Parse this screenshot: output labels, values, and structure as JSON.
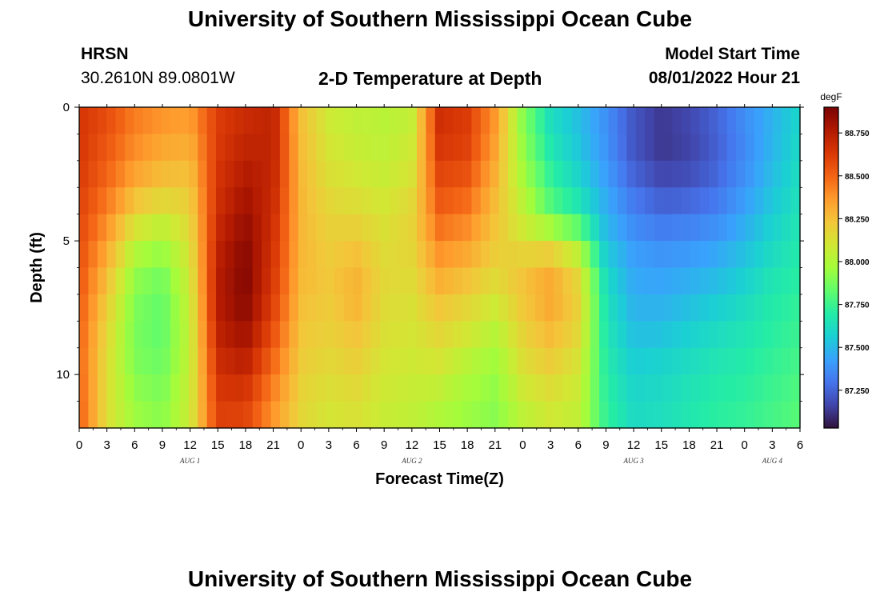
{
  "header": {
    "title": "University of Southern Mississippi Ocean Cube",
    "station": "HRSN",
    "coordinates": "30.2610N  89.0801W",
    "subtitle": "2-D Temperature at Depth",
    "model_start_label": "Model Start Time",
    "model_start_value": "08/01/2022 Hour 21"
  },
  "footer": {
    "title": "University of Southern Mississippi Ocean Cube"
  },
  "chart_data": {
    "type": "heatmap",
    "title": "2-D Temperature at Depth",
    "xlabel": "Forecast Time(Z)",
    "ylabel": "Depth (ft)",
    "x_tick_labels": [
      "0",
      "3",
      "6",
      "9",
      "12",
      "15",
      "18",
      "21",
      "0",
      "3",
      "6",
      "9",
      "12",
      "15",
      "18",
      "21",
      "0",
      "3",
      "6",
      "9",
      "12",
      "15",
      "18",
      "21",
      "0",
      "3",
      "6"
    ],
    "x_range_hours": [
      0,
      78
    ],
    "day_labels": [
      {
        "label": "AUG 1",
        "hour": 12
      },
      {
        "label": "AUG 2",
        "hour": 36
      },
      {
        "label": "AUG 3",
        "hour": 60
      },
      {
        "label": "AUG 4",
        "hour": 75
      }
    ],
    "y_tick_labels": [
      "0",
      "5",
      "10"
    ],
    "y_tick_values": [
      0,
      5,
      10
    ],
    "ylim": [
      0,
      12
    ],
    "colorbar": {
      "unit": "degF",
      "min": 87.03,
      "max": 88.9,
      "tick_labels": [
        "88.750",
        "88.500",
        "88.250",
        "88.000",
        "87.750",
        "87.500",
        "87.250"
      ],
      "tick_values": [
        88.75,
        88.5,
        88.25,
        88.0,
        87.75,
        87.5,
        87.25
      ]
    },
    "colors": {
      "scale": [
        "#30123b",
        "#4145ab",
        "#4675ed",
        "#39a2fc",
        "#1bcfd4",
        "#24eca6",
        "#61fc6c",
        "#a4fc3b",
        "#d1e834",
        "#f3c63a",
        "#fe9b2d",
        "#f36315",
        "#d93806",
        "#b11901",
        "#7a0403"
      ]
    },
    "depths_ft": [
      0,
      1,
      2,
      3,
      4,
      5,
      6,
      7,
      8,
      9,
      10,
      11,
      12
    ],
    "series_sampling_hours": [
      0,
      3,
      6,
      9,
      12,
      15,
      18,
      21,
      24,
      27,
      30,
      33,
      36,
      39,
      42,
      45,
      48,
      51,
      54,
      57,
      60,
      63,
      66,
      69,
      72,
      75,
      78
    ],
    "temperature_by_depth_degF": [
      [
        88.65,
        88.58,
        88.45,
        88.4,
        88.38,
        88.62,
        88.68,
        88.72,
        88.25,
        88.08,
        88.05,
        88.02,
        88.05,
        88.68,
        88.62,
        88.38,
        87.9,
        87.62,
        87.52,
        87.38,
        87.22,
        87.14,
        87.18,
        87.26,
        87.38,
        87.48,
        87.6
      ],
      [
        88.65,
        88.55,
        88.42,
        88.35,
        88.32,
        88.62,
        88.7,
        88.72,
        88.26,
        88.1,
        88.05,
        88.03,
        88.07,
        88.66,
        88.62,
        88.36,
        87.92,
        87.64,
        87.52,
        87.38,
        87.2,
        87.12,
        87.16,
        87.24,
        87.36,
        87.48,
        87.6
      ],
      [
        88.64,
        88.52,
        88.38,
        88.3,
        88.28,
        88.64,
        88.74,
        88.72,
        88.27,
        88.12,
        88.08,
        88.05,
        88.1,
        88.62,
        88.58,
        88.32,
        87.95,
        87.7,
        87.56,
        87.4,
        87.22,
        87.14,
        87.16,
        87.24,
        87.36,
        87.5,
        87.62
      ],
      [
        88.62,
        88.48,
        88.3,
        88.22,
        88.22,
        88.66,
        88.78,
        88.7,
        88.28,
        88.15,
        88.12,
        88.08,
        88.14,
        88.56,
        88.52,
        88.28,
        88.0,
        87.75,
        87.62,
        87.44,
        87.28,
        87.2,
        87.22,
        87.28,
        87.4,
        87.52,
        87.64
      ],
      [
        88.6,
        88.42,
        88.18,
        88.1,
        88.18,
        88.68,
        88.82,
        88.68,
        88.28,
        88.18,
        88.16,
        88.12,
        88.18,
        88.5,
        88.44,
        88.25,
        88.06,
        87.84,
        87.7,
        87.48,
        87.34,
        87.28,
        87.3,
        87.34,
        87.44,
        87.56,
        87.66
      ],
      [
        88.58,
        88.35,
        88.05,
        87.98,
        88.14,
        88.72,
        88.86,
        88.66,
        88.28,
        88.2,
        88.22,
        88.14,
        88.18,
        88.42,
        88.36,
        88.22,
        88.12,
        88.1,
        87.95,
        87.52,
        87.4,
        87.36,
        87.38,
        87.42,
        87.5,
        87.6,
        87.68
      ],
      [
        88.56,
        88.28,
        87.95,
        87.88,
        88.1,
        88.74,
        88.88,
        88.64,
        88.28,
        88.22,
        88.28,
        88.16,
        88.16,
        88.34,
        88.28,
        88.18,
        88.24,
        88.3,
        88.14,
        87.6,
        87.44,
        87.42,
        87.44,
        87.48,
        87.55,
        87.64,
        87.7
      ],
      [
        88.54,
        88.22,
        87.9,
        87.84,
        88.08,
        88.76,
        88.88,
        88.62,
        88.26,
        88.22,
        88.3,
        88.16,
        88.14,
        88.26,
        88.2,
        88.12,
        88.24,
        88.34,
        88.2,
        87.64,
        87.46,
        87.46,
        87.5,
        87.54,
        87.6,
        87.68,
        87.72
      ],
      [
        88.52,
        88.18,
        87.88,
        87.82,
        88.06,
        88.74,
        88.84,
        88.58,
        88.24,
        88.2,
        88.26,
        88.14,
        88.12,
        88.2,
        88.14,
        88.05,
        88.2,
        88.3,
        88.18,
        87.66,
        87.5,
        87.5,
        87.55,
        87.6,
        87.64,
        87.7,
        87.74
      ],
      [
        88.5,
        88.15,
        87.88,
        87.84,
        88.06,
        88.7,
        88.78,
        88.52,
        88.22,
        88.18,
        88.22,
        88.12,
        88.1,
        88.14,
        88.06,
        87.98,
        88.16,
        88.24,
        88.14,
        87.68,
        87.54,
        87.56,
        87.6,
        87.64,
        87.68,
        87.72,
        87.76
      ],
      [
        88.5,
        88.14,
        87.9,
        87.86,
        88.06,
        88.66,
        88.7,
        88.46,
        88.2,
        88.15,
        88.18,
        88.1,
        88.08,
        88.08,
        88.0,
        87.94,
        88.12,
        88.18,
        88.1,
        87.7,
        87.58,
        87.6,
        87.64,
        87.68,
        87.7,
        87.74,
        87.78
      ],
      [
        88.52,
        88.14,
        87.94,
        87.9,
        88.08,
        88.62,
        88.62,
        88.4,
        88.18,
        88.12,
        88.14,
        88.08,
        88.06,
        88.02,
        87.96,
        87.92,
        88.06,
        88.12,
        88.06,
        87.72,
        87.6,
        87.62,
        87.66,
        87.7,
        87.72,
        87.76,
        87.8
      ],
      [
        88.52,
        88.14,
        87.96,
        87.92,
        88.08,
        88.6,
        88.58,
        88.36,
        88.16,
        88.1,
        88.12,
        88.06,
        88.04,
        87.98,
        87.94,
        87.9,
        88.02,
        88.08,
        88.04,
        87.74,
        87.62,
        87.64,
        87.68,
        87.72,
        87.74,
        87.78,
        87.82
      ]
    ]
  }
}
